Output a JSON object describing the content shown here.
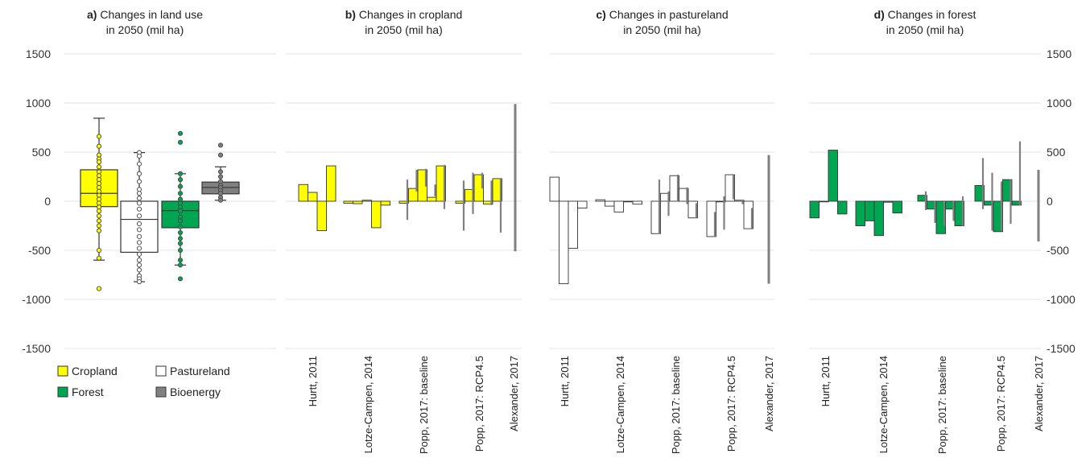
{
  "y_ticks": [
    "1500",
    "1000",
    "500",
    "0",
    "-500",
    "-1000",
    "-1500"
  ],
  "chart_data": [
    {
      "type": "box",
      "panel_label": "a)",
      "title": "Changes in land use",
      "title_line2": "in 2050 (mil ha)",
      "ylim": [
        -1500,
        1500
      ],
      "grid": true,
      "series": [
        {
          "name": "Cropland",
          "color": "#ffff00",
          "whisker_low": -600,
          "q1": -55,
          "median": 80,
          "q3": 320,
          "whisker_high": 845,
          "points": [
            660,
            560,
            470,
            430,
            400,
            350,
            300,
            260,
            220,
            180,
            140,
            100,
            60,
            20,
            -20,
            -60,
            -100,
            -150,
            -200,
            -250,
            -300,
            -500,
            -580,
            -890
          ]
        },
        {
          "name": "Pastureland",
          "color": "#ffffff",
          "whisker_low": -820,
          "q1": -520,
          "median": -185,
          "q3": 0,
          "whisker_high": 495,
          "points": [
            495,
            460,
            380,
            280,
            200,
            120,
            80,
            30,
            -20,
            -80,
            -150,
            -230,
            -290,
            -360,
            -420,
            -480,
            -540,
            -600,
            -650,
            -700,
            -760,
            -790,
            -820
          ]
        },
        {
          "name": "Forest",
          "color": "#00a651",
          "whisker_low": -650,
          "q1": -270,
          "median": -95,
          "q3": 0,
          "whisker_high": 280,
          "points": [
            690,
            600,
            280,
            220,
            150,
            80,
            20,
            -20,
            -60,
            -100,
            -160,
            -200,
            -260,
            -320,
            -380,
            -430,
            -500,
            -600,
            -650,
            -790
          ]
        },
        {
          "name": "Bioenergy",
          "color": "#808080",
          "whisker_low": 10,
          "q1": 75,
          "median": 140,
          "q3": 195,
          "whisker_high": 350,
          "points": [
            570,
            470,
            300,
            250,
            200,
            160,
            140,
            110,
            80,
            40,
            10
          ]
        }
      ]
    },
    {
      "type": "bar",
      "panel_label": "b)",
      "title": "Changes in cropland",
      "title_line2": "in 2050 (mil ha)",
      "ylim": [
        -1500,
        1500
      ],
      "color": "#ffff00",
      "categories": [
        "Hurtt, 2011",
        "Lotze-Campen, 2014",
        "Popp, 2017: baseline",
        "Popp, 2017: RCP4.5",
        "Alexander, 2017"
      ],
      "groups": [
        {
          "values": [
            170,
            90,
            -300,
            360
          ],
          "error_ranges": []
        },
        {
          "values": [
            -20,
            -25,
            10,
            -270,
            -40
          ],
          "error_ranges": []
        },
        {
          "values": [
            -20,
            130,
            320,
            40,
            360
          ],
          "error_ranges": [
            [
              -190,
              220
            ],
            [
              100,
              320
            ],
            [
              150,
              330
            ],
            [
              50,
              170
            ],
            [
              -80,
              370
            ]
          ]
        },
        {
          "values": [
            -20,
            120,
            270,
            -30,
            230
          ],
          "error_ranges": [
            [
              -300,
              210
            ],
            [
              -130,
              290
            ],
            [
              130,
              290
            ],
            [
              -40,
              210
            ],
            [
              -320,
              230
            ]
          ]
        },
        {
          "values": [],
          "error_ranges": [
            [
              -510,
              990
            ]
          ]
        }
      ]
    },
    {
      "type": "bar",
      "panel_label": "c)",
      "title": "Changes in pastureland",
      "title_line2": "in 2050 (mil ha)",
      "ylim": [
        -1500,
        1500
      ],
      "color": "#ffffff",
      "categories": [
        "Hurtt, 2011",
        "Lotze-Campen, 2014",
        "Popp, 2017: baseline",
        "Popp, 2017: RCP4.5",
        "Alexander, 2017"
      ],
      "groups": [
        {
          "values": [
            245,
            -840,
            -480,
            -70
          ],
          "error_ranges": []
        },
        {
          "values": [
            15,
            -50,
            -110,
            0,
            -30
          ],
          "error_ranges": []
        },
        {
          "values": [
            -330,
            80,
            260,
            130,
            -170
          ],
          "error_ranges": [
            [
              -330,
              220
            ],
            [
              -150,
              100
            ],
            [
              0,
              270
            ],
            [
              -30,
              140
            ],
            [
              -170,
              -20
            ]
          ]
        },
        {
          "values": [
            -360,
            0,
            270,
            10,
            -280
          ],
          "error_ranges": [
            [
              -360,
              -110
            ],
            [
              -290,
              50
            ],
            [
              20,
              270
            ],
            [
              -30,
              10
            ],
            [
              -280,
              -70
            ]
          ]
        },
        {
          "values": [],
          "error_ranges": [
            [
              -840,
              470
            ]
          ]
        }
      ]
    },
    {
      "type": "bar",
      "panel_label": "d)",
      "title": "Changes in forest",
      "title_line2": "in 2050 (mil ha)",
      "ylim": [
        -1500,
        1500
      ],
      "color": "#00a651",
      "categories": [
        "Hurtt, 2011",
        "Lotze-Campen, 2014",
        "Popp, 2017: baseline",
        "Popp, 2017: RCP4.5",
        "Alexander, 2017"
      ],
      "groups": [
        {
          "values": [
            -170,
            0,
            520,
            -130
          ],
          "error_ranges": []
        },
        {
          "values": [
            -250,
            -200,
            -350,
            -10,
            -120
          ],
          "error_ranges": []
        },
        {
          "values": [
            60,
            -80,
            -330,
            -80,
            -250
          ],
          "error_ranges": [
            [
              -90,
              100
            ],
            [
              -220,
              0
            ],
            [
              -250,
              0
            ],
            [
              -200,
              0
            ],
            [
              -250,
              50
            ]
          ]
        },
        {
          "values": [
            160,
            -40,
            -310,
            220,
            -40
          ],
          "error_ranges": [
            [
              -80,
              440
            ],
            [
              -300,
              290
            ],
            [
              -300,
              200
            ],
            [
              -230,
              220
            ],
            [
              -40,
              610
            ]
          ]
        },
        {
          "values": [],
          "error_ranges": [
            [
              -410,
              320
            ]
          ]
        }
      ]
    }
  ]
}
